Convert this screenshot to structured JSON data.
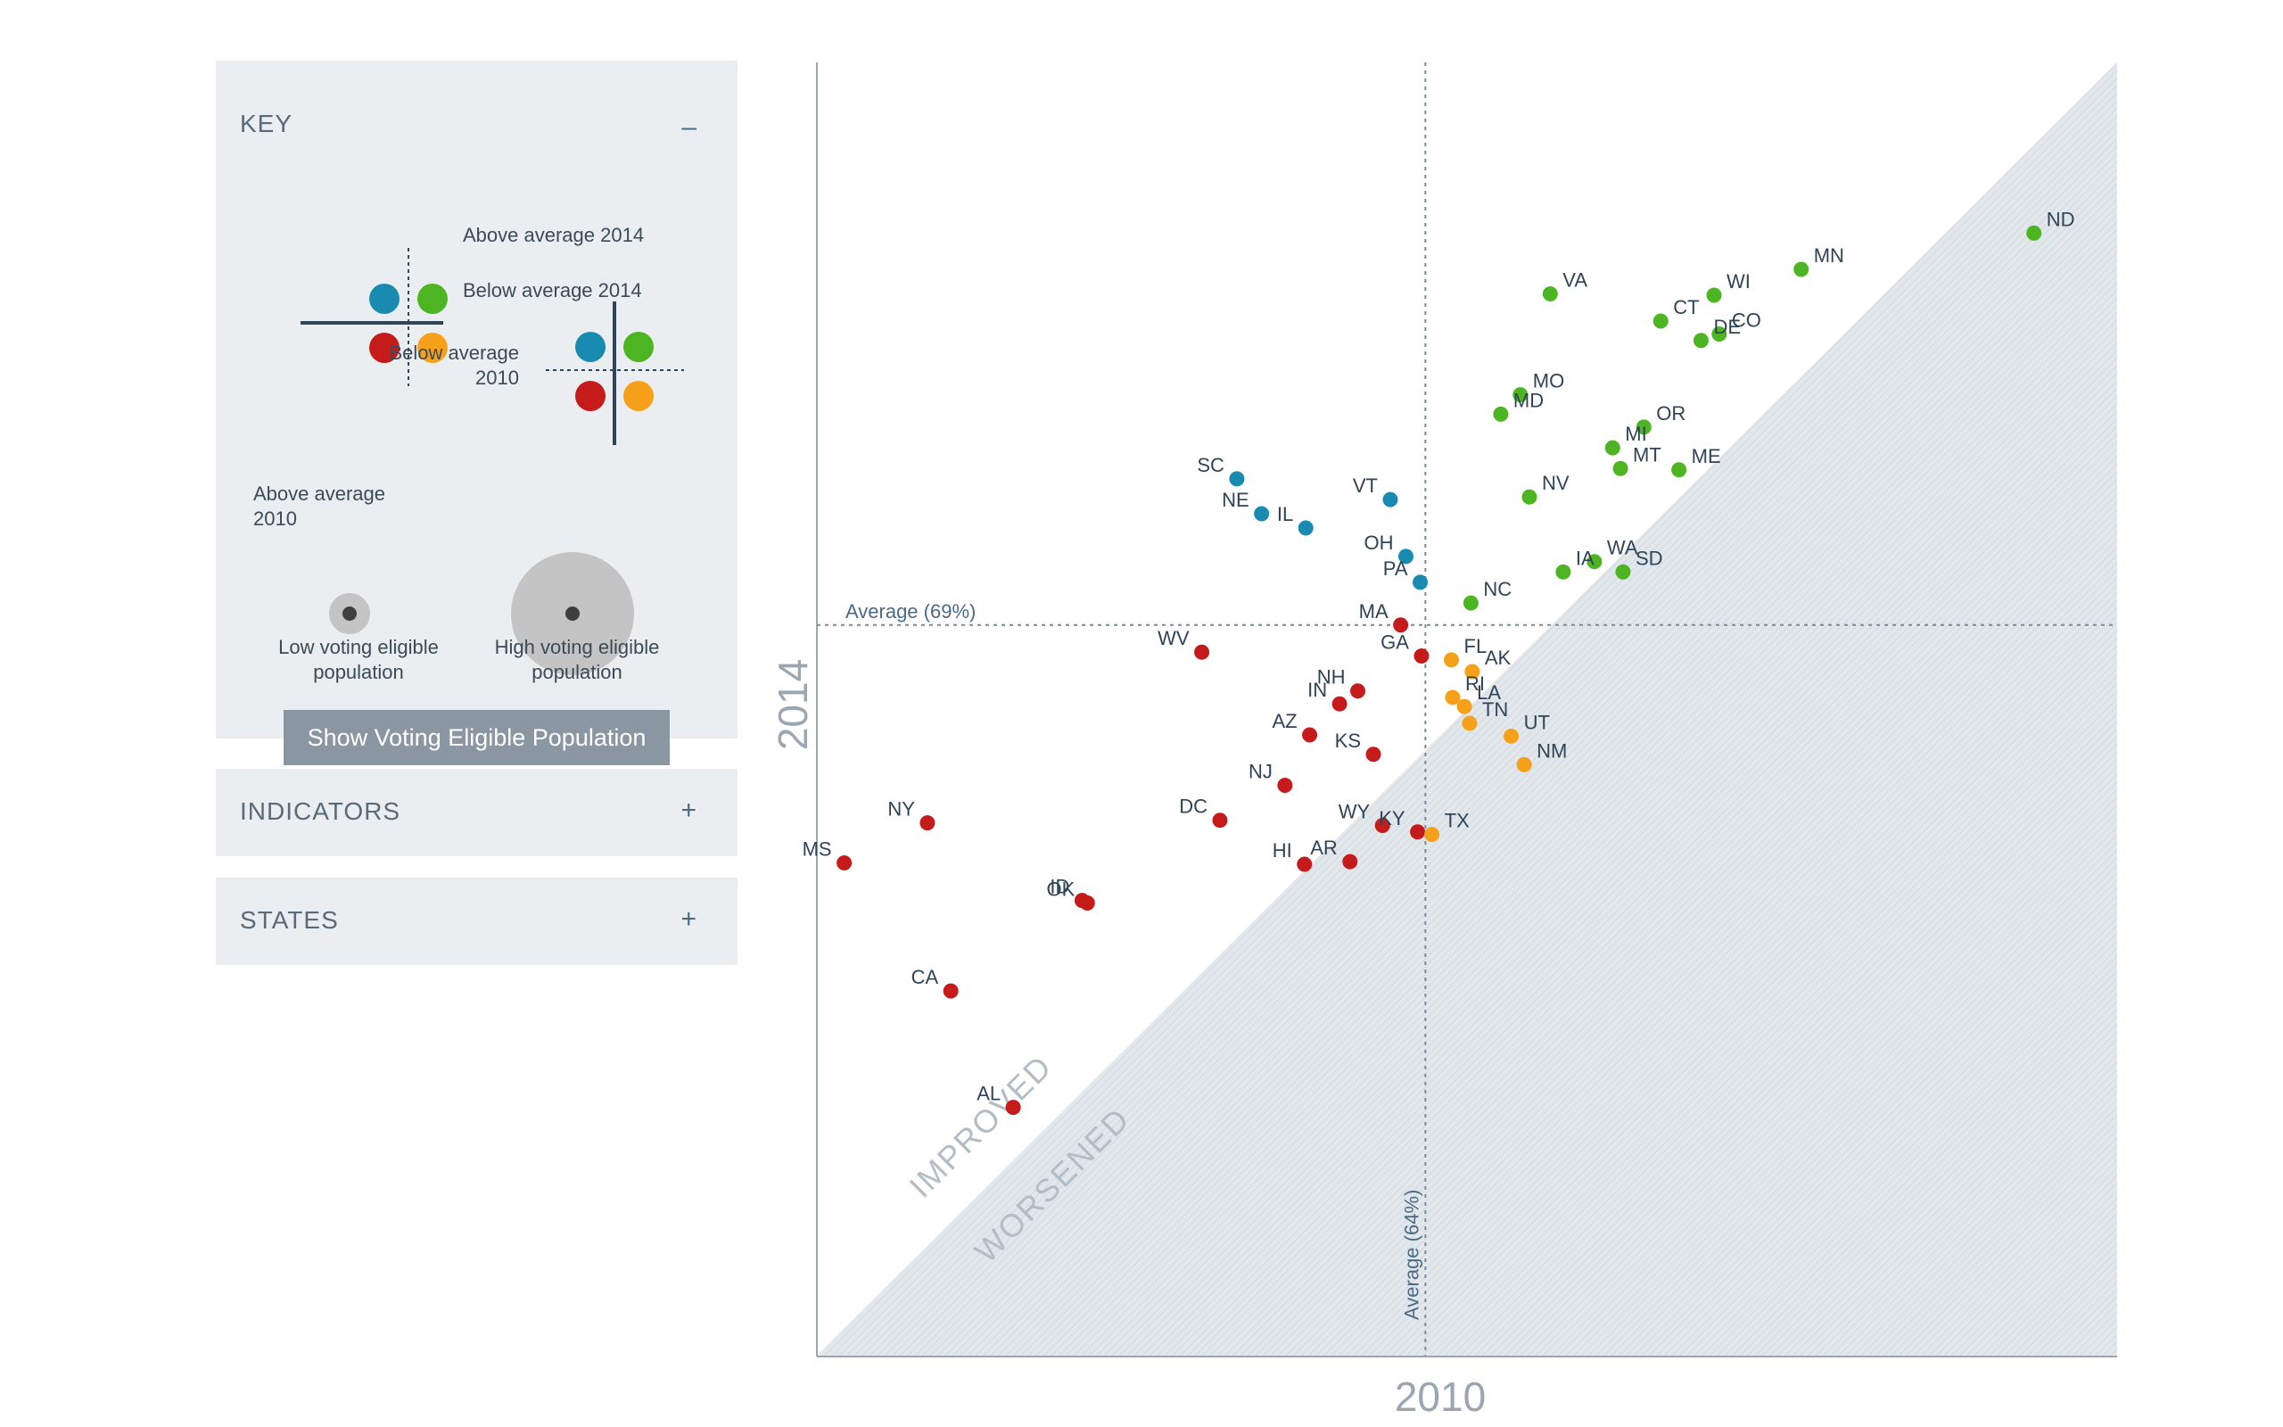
{
  "key_panel": {
    "title": "KEY",
    "toggle": "–",
    "above_2014": "Above average 2014",
    "below_2014": "Below average 2014",
    "below_2010": "Below average 2010",
    "above_2010": "Above average 2010",
    "low_pop": "Low voting eligible population",
    "high_pop": "High voting eligible population",
    "button": "Show Voting Eligible Population"
  },
  "indicators_panel": {
    "title": "INDICATORS",
    "toggle": "+"
  },
  "states_panel": {
    "title": "STATES",
    "toggle": "+"
  },
  "colors": {
    "green": "#4db522",
    "blue": "#1a8bb0",
    "red": "#c51b1b",
    "orange": "#f7a11a",
    "axis": "#9aa6b2",
    "shade": "#e1e7ea"
  },
  "chart_data": {
    "type": "scatter",
    "xlabel": "2010",
    "ylabel": "2014",
    "xlim": [
      0,
      100
    ],
    "ylim": [
      0,
      100
    ],
    "x_average": 46.8,
    "y_average": 56.5,
    "x_average_label": "Average (64%)",
    "y_average_label": "Average (69%)",
    "region_labels": {
      "above": "IMPROVED",
      "below": "WORSENED"
    },
    "points": [
      {
        "label": "ND",
        "x": 93.6,
        "y": 86.8,
        "group": "green"
      },
      {
        "label": "MN",
        "x": 75.7,
        "y": 84.0,
        "group": "green"
      },
      {
        "label": "VA",
        "x": 56.4,
        "y": 82.1,
        "group": "green"
      },
      {
        "label": "WI",
        "x": 69.0,
        "y": 82.0,
        "group": "green"
      },
      {
        "label": "CT",
        "x": 64.9,
        "y": 80.0,
        "group": "green"
      },
      {
        "label": "CO",
        "x": 69.4,
        "y": 79.0,
        "group": "green"
      },
      {
        "label": "DE",
        "x": 68.0,
        "y": 78.5,
        "group": "green"
      },
      {
        "label": "MO",
        "x": 54.1,
        "y": 74.3,
        "group": "green"
      },
      {
        "label": "MD",
        "x": 52.6,
        "y": 72.8,
        "group": "green"
      },
      {
        "label": "OR",
        "x": 63.6,
        "y": 71.8,
        "group": "green"
      },
      {
        "label": "MI",
        "x": 61.2,
        "y": 70.2,
        "group": "green"
      },
      {
        "label": "MT",
        "x": 61.8,
        "y": 68.6,
        "group": "green"
      },
      {
        "label": "ME",
        "x": 66.3,
        "y": 68.5,
        "group": "green"
      },
      {
        "label": "NV",
        "x": 54.8,
        "y": 66.4,
        "group": "green"
      },
      {
        "label": "WA",
        "x": 59.8,
        "y": 61.4,
        "group": "green"
      },
      {
        "label": "IA",
        "x": 57.4,
        "y": 60.6,
        "group": "green"
      },
      {
        "label": "SD",
        "x": 62.0,
        "y": 60.6,
        "group": "green"
      },
      {
        "label": "NC",
        "x": 50.3,
        "y": 58.2,
        "group": "green"
      },
      {
        "label": "SC",
        "x": 32.3,
        "y": 67.8,
        "group": "blue"
      },
      {
        "label": "NE",
        "x": 34.2,
        "y": 65.1,
        "group": "blue"
      },
      {
        "label": "IL",
        "x": 37.6,
        "y": 64.0,
        "group": "blue"
      },
      {
        "label": "VT",
        "x": 44.1,
        "y": 66.2,
        "group": "blue"
      },
      {
        "label": "OH",
        "x": 45.3,
        "y": 61.8,
        "group": "blue"
      },
      {
        "label": "PA",
        "x": 46.4,
        "y": 59.8,
        "group": "blue"
      },
      {
        "label": "MA",
        "x": 44.9,
        "y": 56.5,
        "group": "red"
      },
      {
        "label": "WV",
        "x": 29.6,
        "y": 54.4,
        "group": "red"
      },
      {
        "label": "GA",
        "x": 46.5,
        "y": 54.1,
        "group": "red"
      },
      {
        "label": "NH",
        "x": 41.6,
        "y": 51.4,
        "group": "red"
      },
      {
        "label": "IN",
        "x": 40.2,
        "y": 50.4,
        "group": "red"
      },
      {
        "label": "AZ",
        "x": 37.9,
        "y": 48.0,
        "group": "red"
      },
      {
        "label": "KS",
        "x": 42.8,
        "y": 46.5,
        "group": "red"
      },
      {
        "label": "NJ",
        "x": 36.0,
        "y": 44.1,
        "group": "red"
      },
      {
        "label": "DC",
        "x": 31.0,
        "y": 41.4,
        "group": "red"
      },
      {
        "label": "NY",
        "x": 8.5,
        "y": 41.2,
        "group": "red"
      },
      {
        "label": "WY",
        "x": 43.5,
        "y": 41.0,
        "group": "red"
      },
      {
        "label": "KY",
        "x": 46.2,
        "y": 40.5,
        "group": "red"
      },
      {
        "label": "MS",
        "x": 2.1,
        "y": 38.1,
        "group": "red"
      },
      {
        "label": "HI",
        "x": 37.5,
        "y": 38.0,
        "group": "red"
      },
      {
        "label": "AR",
        "x": 41.0,
        "y": 38.2,
        "group": "red"
      },
      {
        "label": "ID",
        "x": 20.4,
        "y": 35.2,
        "group": "red"
      },
      {
        "label": "OK",
        "x": 20.8,
        "y": 35.0,
        "group": "red"
      },
      {
        "label": "CA",
        "x": 10.3,
        "y": 28.2,
        "group": "red"
      },
      {
        "label": "AL",
        "x": 15.1,
        "y": 19.2,
        "group": "red"
      },
      {
        "label": "FL",
        "x": 48.8,
        "y": 53.8,
        "group": "orange"
      },
      {
        "label": "AK",
        "x": 50.4,
        "y": 52.9,
        "group": "orange"
      },
      {
        "label": "RI",
        "x": 48.9,
        "y": 50.9,
        "group": "orange"
      },
      {
        "label": "LA",
        "x": 49.8,
        "y": 50.2,
        "group": "orange"
      },
      {
        "label": "TN",
        "x": 50.2,
        "y": 48.9,
        "group": "orange"
      },
      {
        "label": "UT",
        "x": 53.4,
        "y": 47.9,
        "group": "orange"
      },
      {
        "label": "NM",
        "x": 54.4,
        "y": 45.7,
        "group": "orange"
      },
      {
        "label": "TX",
        "x": 47.3,
        "y": 40.3,
        "group": "orange"
      }
    ]
  }
}
